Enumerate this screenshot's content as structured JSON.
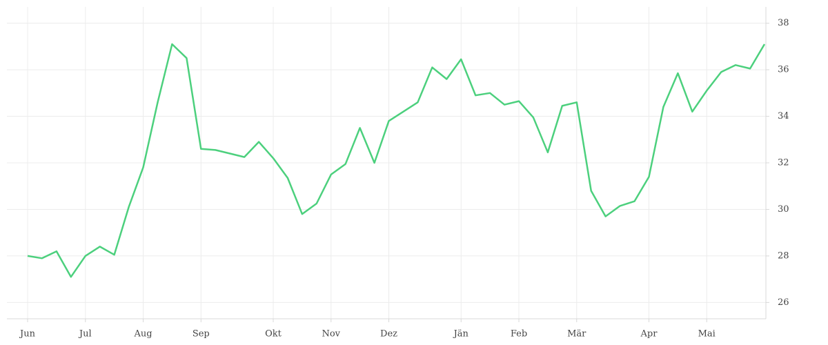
{
  "chart_data": {
    "type": "line",
    "categories": [
      "Jun",
      null,
      null,
      null,
      "Jul",
      null,
      null,
      null,
      "Aug",
      null,
      null,
      null,
      "Sep",
      null,
      null,
      null,
      null,
      "Okt",
      null,
      null,
      null,
      "Nov",
      null,
      null,
      null,
      "Dez",
      null,
      null,
      null,
      null,
      "Jän",
      null,
      null,
      null,
      "Feb",
      null,
      null,
      null,
      "Mär",
      null,
      null,
      null,
      null,
      "Apr",
      null,
      null,
      null,
      "Mai",
      null,
      null,
      null,
      null
    ],
    "series": [
      {
        "color": "#4cd07d",
        "values": [
          28.0,
          27.9,
          28.2,
          27.1,
          28.0,
          28.4,
          28.05,
          30.1,
          31.8,
          34.6,
          37.1,
          36.5,
          32.6,
          32.55,
          32.4,
          32.25,
          32.9,
          32.2,
          31.35,
          29.8,
          30.25,
          31.5,
          31.95,
          33.5,
          32.0,
          33.8,
          34.2,
          34.6,
          36.1,
          35.6,
          36.45,
          34.9,
          35.0,
          34.5,
          34.65,
          33.95,
          32.45,
          34.45,
          34.6,
          30.8,
          29.7,
          30.15,
          30.35,
          31.4,
          34.4,
          35.85,
          34.2,
          35.1,
          35.9,
          36.2,
          36.05,
          37.1
        ]
      }
    ],
    "ylim": [
      25.3,
      38.7
    ],
    "yticks": [
      26,
      28,
      30,
      32,
      34,
      36,
      38
    ],
    "grid": true
  }
}
